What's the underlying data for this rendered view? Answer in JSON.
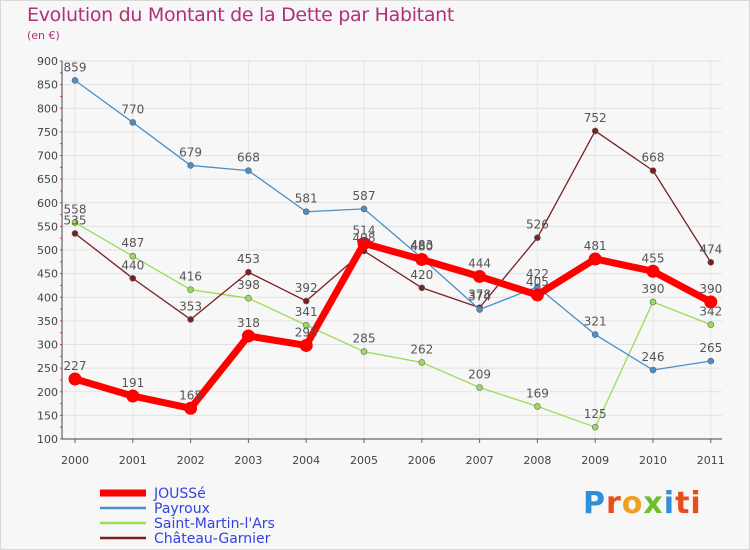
{
  "chart_data": {
    "type": "line",
    "title": "Evolution du Montant de la Dette par Habitant",
    "subtitle": "(en €)",
    "categories": [
      "2000",
      "2001",
      "2002",
      "2003",
      "2004",
      "2005",
      "2006",
      "2007",
      "2008",
      "2009",
      "2010",
      "2011"
    ],
    "ylim": [
      100,
      900
    ],
    "yticks": [
      100,
      150,
      200,
      250,
      300,
      350,
      400,
      450,
      500,
      550,
      600,
      650,
      700,
      750,
      800,
      850,
      900
    ],
    "grid": true,
    "legend_position": "bottom-left",
    "series": [
      {
        "name": "JOUSSé",
        "color": "#ff0000",
        "values": [
          227,
          191,
          165,
          318,
          298,
          514,
          480,
          444,
          405,
          481,
          455,
          390
        ],
        "labels": [
          "227",
          "191",
          "165",
          "318",
          "298",
          "514",
          "480",
          "444",
          "405",
          "481",
          "455",
          "390"
        ]
      },
      {
        "name": "Payroux",
        "color": "#4a8fc8",
        "values": [
          859,
          770,
          679,
          668,
          581,
          587,
          483,
          374,
          422,
          321,
          246,
          265
        ],
        "labels": [
          "859",
          "770",
          "679",
          "668",
          "581",
          "587",
          "483",
          "374",
          "422",
          "321",
          "246",
          "265"
        ]
      },
      {
        "name": "Saint-Martin-l'Ars",
        "color": "#99dd55",
        "values": [
          558,
          487,
          416,
          398,
          341,
          285,
          262,
          209,
          169,
          125,
          390,
          342
        ],
        "labels": [
          "558",
          "487",
          "416",
          "398",
          "341",
          "285",
          "262",
          "209",
          "169",
          "125",
          "390",
          "342"
        ]
      },
      {
        "name": "Château-Garnier",
        "color": "#7a2020",
        "values": [
          535,
          440,
          353,
          453,
          392,
          498,
          420,
          378,
          526,
          752,
          668,
          474
        ],
        "labels": [
          "535",
          "440",
          "353",
          "453",
          "392",
          "498",
          "420",
          "378",
          "526",
          "752",
          "668",
          "474"
        ]
      }
    ]
  },
  "logo_text": "Proxiti"
}
